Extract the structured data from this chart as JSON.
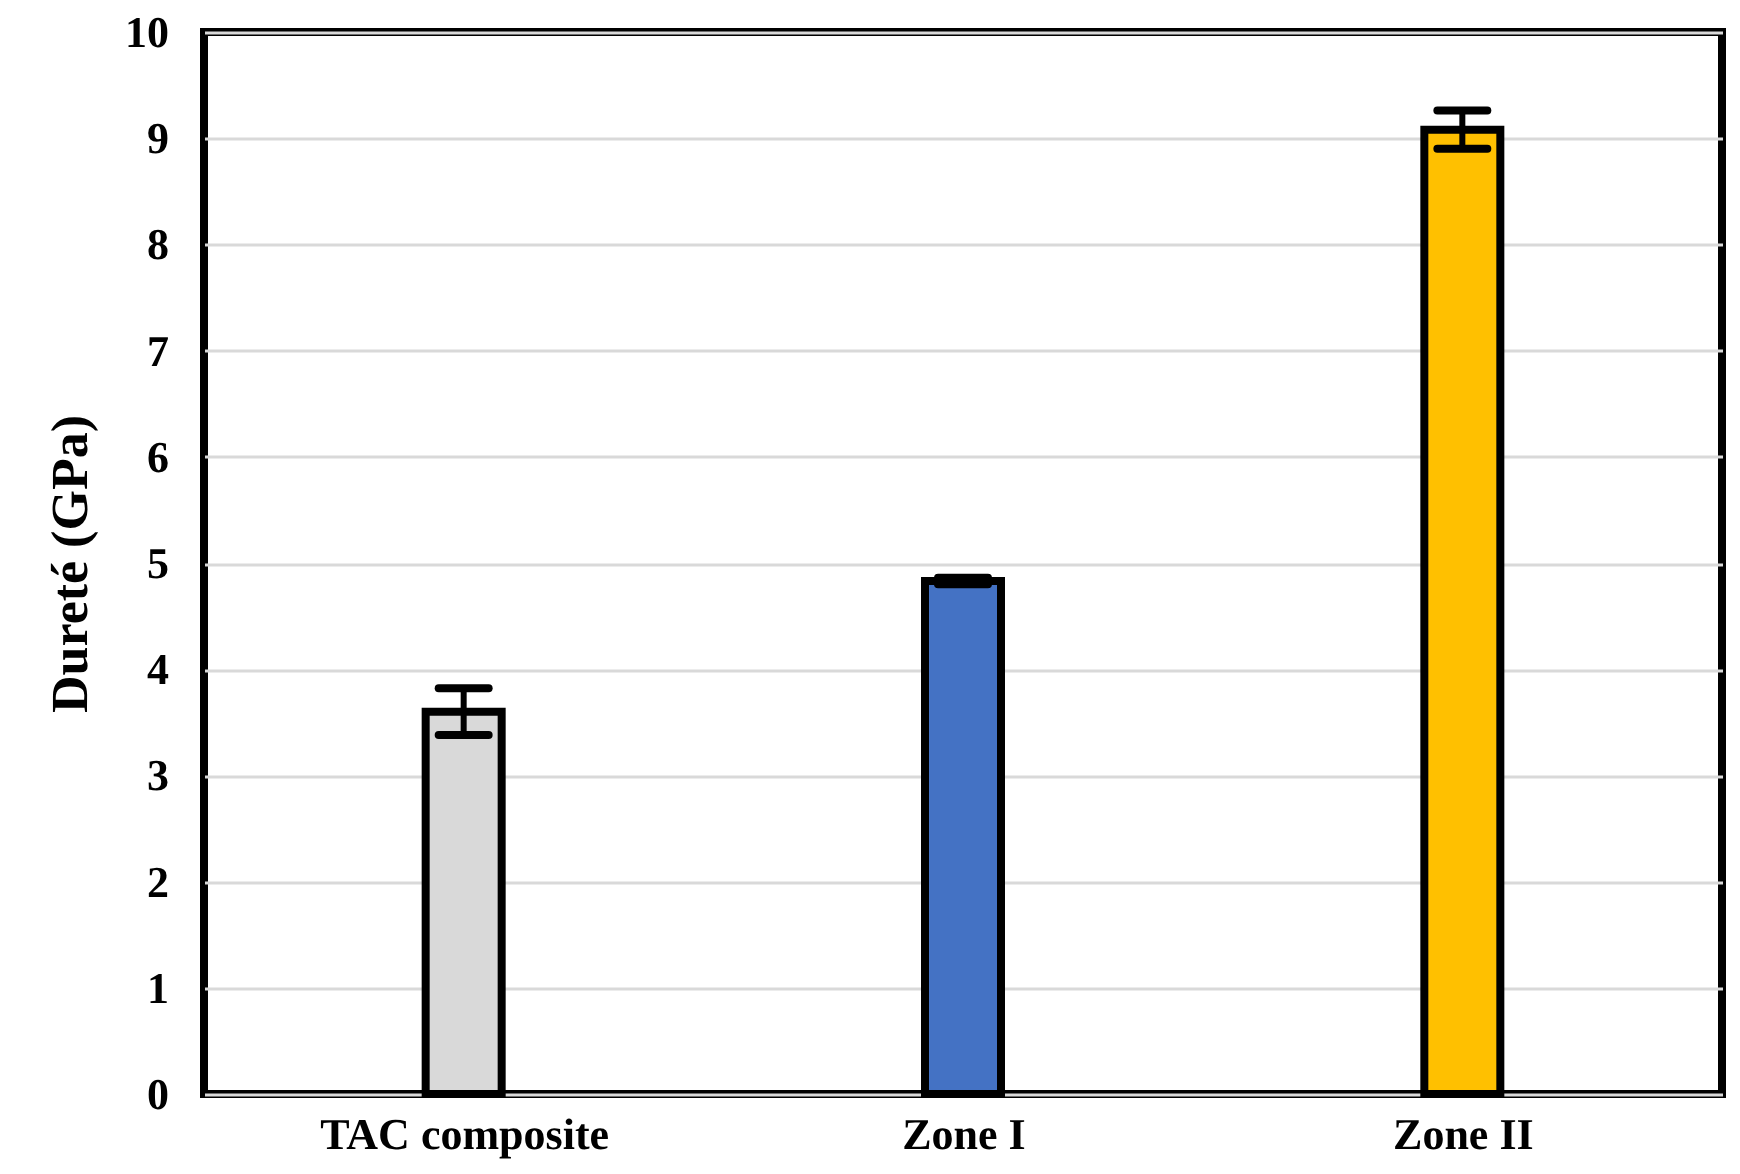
{
  "chart_data": {
    "type": "bar",
    "ylabel": "Dureté (GPa)",
    "categories": [
      "TAC composite",
      "Zone I",
      "Zone II"
    ],
    "values": [
      3.6,
      4.83,
      9.08
    ],
    "colors": [
      "#d9d9d9",
      "#4472c4",
      "#ffc000"
    ],
    "errors": [
      0.22,
      0.03,
      0.18
    ],
    "ylim": [
      0,
      10
    ],
    "yticks": [
      0,
      1,
      2,
      3,
      4,
      5,
      6,
      7,
      8,
      9,
      10
    ],
    "grid": "y"
  }
}
